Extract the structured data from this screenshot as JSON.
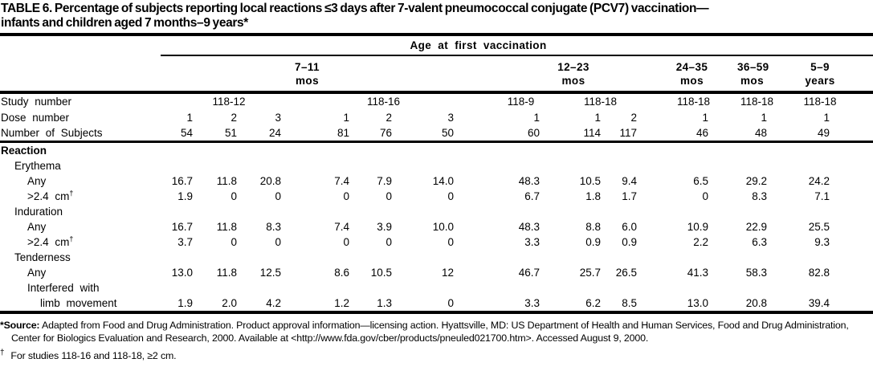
{
  "title": {
    "line1": "TABLE 6. Percentage of subjects reporting local reactions ≤3 days after 7-valent pneumococcal conjugate (PCV7) vaccination—",
    "line2": "infants and children aged 7 months–9 years*"
  },
  "header": {
    "age_span_label": "Age at first vaccination",
    "groups": [
      {
        "line1": "7–11",
        "line2": "mos"
      },
      {
        "line1": "12–23",
        "line2": "mos"
      },
      {
        "line1": "24–35",
        "line2": "mos"
      },
      {
        "line1": "36–59",
        "line2": "mos"
      },
      {
        "line1": "5–9",
        "line2": "years"
      }
    ]
  },
  "meta": {
    "study": {
      "label": "Study number",
      "values": [
        "118-12",
        "118-16",
        "118-9",
        "118-18",
        "118-18",
        "118-18",
        "118-18"
      ]
    },
    "dose": {
      "label": "Dose number",
      "values": [
        "1",
        "2",
        "3",
        "1",
        "2",
        "3",
        "1",
        "1",
        "2",
        "1",
        "1",
        "1"
      ]
    },
    "subjects": {
      "label": "Number of Subjects",
      "values": [
        "54",
        "51",
        "24",
        "81",
        "76",
        "50",
        "60",
        "114",
        "117",
        "46",
        "48",
        "49"
      ]
    }
  },
  "body": {
    "section_label": "Reaction",
    "groups": [
      {
        "name": "Erythema",
        "rows": [
          {
            "label": "Any",
            "sup": "",
            "values": [
              "16.7",
              "11.8",
              "20.8",
              "7.4",
              "7.9",
              "14.0",
              "48.3",
              "10.5",
              "9.4",
              "6.5",
              "29.2",
              "24.2"
            ]
          },
          {
            "label": ">2.4 cm",
            "sup": "†",
            "values": [
              "1.9",
              "0",
              "0",
              "0",
              "0",
              "0",
              "6.7",
              "1.8",
              "1.7",
              "0",
              "8.3",
              "7.1"
            ]
          }
        ]
      },
      {
        "name": "Induration",
        "rows": [
          {
            "label": "Any",
            "sup": "",
            "values": [
              "16.7",
              "11.8",
              "8.3",
              "7.4",
              "3.9",
              "10.0",
              "48.3",
              "8.8",
              "6.0",
              "10.9",
              "22.9",
              "25.5"
            ]
          },
          {
            "label": ">2.4 cm",
            "sup": "†",
            "values": [
              "3.7",
              "0",
              "0",
              "0",
              "0",
              "0",
              "3.3",
              "0.9",
              "0.9",
              "2.2",
              "6.3",
              "9.3"
            ]
          }
        ]
      },
      {
        "name": "Tenderness",
        "rows": [
          {
            "label": "Any",
            "sup": "",
            "values": [
              "13.0",
              "11.8",
              "12.5",
              "8.6",
              "10.5",
              "12",
              "46.7",
              "25.7",
              "26.5",
              "41.3",
              "58.3",
              "82.8"
            ]
          },
          {
            "label_line1": "Interfered with",
            "label_line2": "limb movement",
            "values": [
              "1.9",
              "2.0",
              "4.2",
              "1.2",
              "1.3",
              "0",
              "3.3",
              "6.2",
              "8.5",
              "13.0",
              "20.8",
              "39.4"
            ]
          }
        ]
      }
    ]
  },
  "footnotes": {
    "source": {
      "label": "*Source:",
      "text": "Adapted from Food and Drug Administration. Product approval information—licensing action. Hyattsville, MD: US Department of Health and Human Services, Food and Drug Administration, Center for Biologics Evaluation and Research, 2000. Available at <http://www.fda.gov/cber/products/pneuled021700.htm>. Accessed August 9, 2000."
    },
    "dagger": {
      "marker": "†",
      "text": "For studies 118-16 and 118-18, ≥2 cm."
    }
  }
}
